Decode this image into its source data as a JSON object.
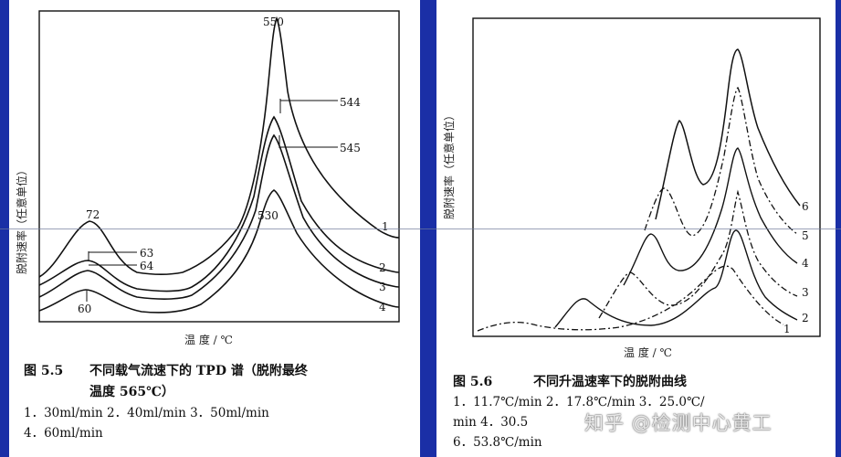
{
  "chart_data": [
    {
      "type": "line",
      "figure_label": "图 5.5",
      "title_line1": "不同载气流速下的 TPD 谱（脱附最终",
      "title_line2": "温度 565℃）",
      "ylabel": "脱附速率（任意单位）",
      "xlabel": "温 度 / ℃",
      "peak_labels": [
        "550",
        "544",
        "545",
        "530",
        "72",
        "63",
        "64",
        "60"
      ],
      "curve_labels": [
        "1",
        "2",
        "3",
        "4"
      ],
      "legend_line1": "1．30ml/min    2．40ml/min    3．50ml/min",
      "legend_line2": "4．60ml/min",
      "series": [
        {
          "name": "30ml/min",
          "low_peak": 72,
          "high_peak": 550
        },
        {
          "name": "40ml/min",
          "low_peak": 63,
          "high_peak": 544
        },
        {
          "name": "50ml/min",
          "low_peak": 64,
          "high_peak": 545
        },
        {
          "name": "60ml/min",
          "low_peak": 60,
          "high_peak": 530
        }
      ]
    },
    {
      "type": "line",
      "figure_label": "图 5.6",
      "title": "不同升温速率下的脱附曲线",
      "ylabel": "脱附速率（任意单位）",
      "xlabel": "温 度 / ℃",
      "curve_labels": [
        "1",
        "2",
        "3",
        "4",
        "5",
        "6"
      ],
      "legend_line1": "1．11.7℃/min   2．17.8℃/min   3．25.0℃/",
      "legend_line2": "min    4．30.5",
      "legend_line3": "6．53.8℃/min",
      "series": [
        {
          "name": "11.7℃/min"
        },
        {
          "name": "17.8℃/min"
        },
        {
          "name": "25.0℃/min"
        },
        {
          "name": "30.5"
        },
        {
          "name": ""
        },
        {
          "name": "53.8℃/min"
        }
      ]
    }
  ],
  "watermark": "知乎 @检测中心黄工"
}
